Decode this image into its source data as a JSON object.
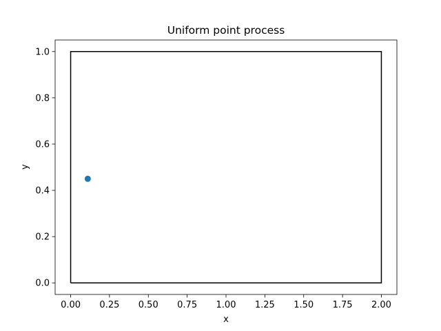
{
  "chart_data": {
    "type": "scatter",
    "title": "Uniform point process",
    "xlabel": "x",
    "ylabel": "y",
    "xlim": [
      -0.1,
      2.1
    ],
    "ylim": [
      -0.05,
      1.05
    ],
    "xticks": [
      0.0,
      0.25,
      0.5,
      0.75,
      1.0,
      1.25,
      1.5,
      1.75,
      2.0
    ],
    "xtick_labels": [
      "0.00",
      "0.25",
      "0.50",
      "0.75",
      "1.00",
      "1.25",
      "1.50",
      "1.75",
      "2.00"
    ],
    "yticks": [
      0.0,
      0.2,
      0.4,
      0.6,
      0.8,
      1.0
    ],
    "ytick_labels": [
      "0.0",
      "0.2",
      "0.4",
      "0.6",
      "0.8",
      "1.0"
    ],
    "grid": false,
    "window": {
      "x": [
        0,
        2,
        2,
        0,
        0
      ],
      "y": [
        0,
        0,
        1,
        1,
        0
      ],
      "color": "#000000"
    },
    "points": {
      "x": [
        0.11
      ],
      "y": [
        0.45
      ],
      "color": "#1f77b4"
    }
  }
}
